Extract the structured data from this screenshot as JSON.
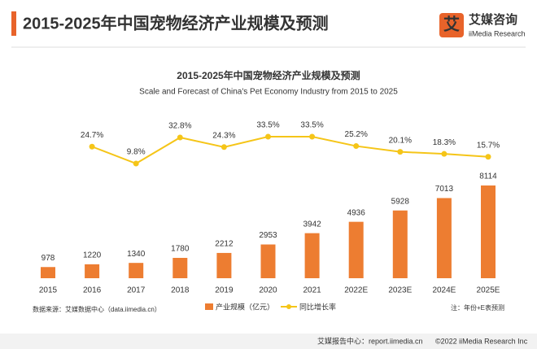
{
  "header": {
    "title": "2015-2025年中国宠物经济产业规模及预测",
    "logo_cn": "艾媒咨询",
    "logo_en": "iiMedia Research"
  },
  "chart_data": {
    "type": "bar",
    "title": "2015-2025年中国宠物经济产业规模及预测",
    "subtitle": "Scale and Forecast of China's Pet Economy Industry from 2015 to 2025",
    "categories": [
      "2015",
      "2016",
      "2017",
      "2018",
      "2019",
      "2020",
      "2021",
      "2022E",
      "2023E",
      "2024E",
      "2025E"
    ],
    "series": [
      {
        "name": "产业规模（亿元）",
        "color": "#ed7d31",
        "values": [
          978,
          1220,
          1340,
          1780,
          2212,
          2953,
          3942,
          4936,
          5928,
          7013,
          8114
        ]
      },
      {
        "name": "同比增长率",
        "color": "#f5c518",
        "type": "line",
        "values": [
          null,
          24.7,
          9.8,
          32.8,
          24.3,
          33.5,
          33.5,
          25.2,
          20.1,
          18.3,
          15.7
        ],
        "value_labels": [
          null,
          "24.7%",
          "9.8%",
          "32.8%",
          "24.3%",
          "33.5%",
          "33.5%",
          "25.2%",
          "20.1%",
          "18.3%",
          "15.7%"
        ]
      }
    ]
  },
  "footer": {
    "source": "数据来源：艾媒数据中心（data.iimedia.cn）",
    "note": "注：年份+E表预测",
    "report": "艾媒报告中心：report.iimedia.cn",
    "copyright": "©2022  iiMedia Research  Inc"
  }
}
